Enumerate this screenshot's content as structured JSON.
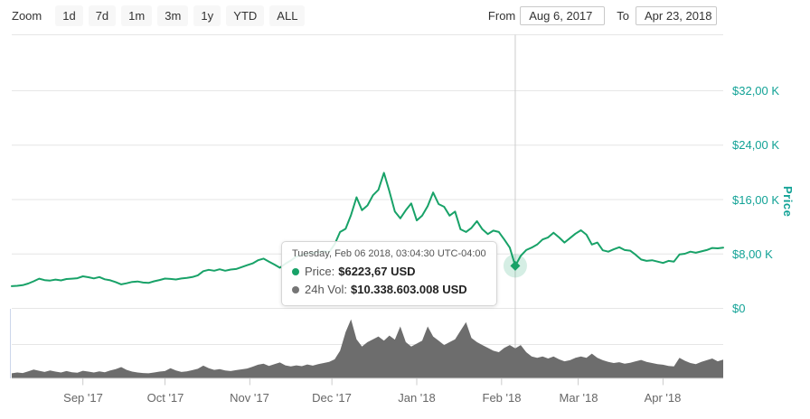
{
  "toolbar": {
    "zoom_label": "Zoom",
    "buttons": [
      "1d",
      "7d",
      "1m",
      "3m",
      "1y",
      "YTD",
      "ALL"
    ],
    "from_label": "From",
    "from_value": "Aug 6, 2017",
    "to_label": "To",
    "to_value": "Apr 23, 2018"
  },
  "tooltip": {
    "date": "Tuesday, Feb 06 2018, 03:04:30 UTC-04:00",
    "price_label": "Price:",
    "price_value": "$6223,67 USD",
    "vol_label": "24h Vol:",
    "vol_value": "$10.338.603.008 USD"
  },
  "chart_data": {
    "type": "line",
    "title": "",
    "grid": true,
    "legend_position": "none",
    "y_axis": {
      "title": "Price",
      "side": "right",
      "labels": [
        "$32,00 K",
        "$24,00 K",
        "$16,00 K",
        "$8,00 K",
        "$0"
      ],
      "tick_values_usd_thousands": [
        32,
        24,
        16,
        8,
        0
      ],
      "ylim_usd_thousands": [
        0,
        40
      ]
    },
    "x_axis": {
      "labels": [
        "Sep '17",
        "Oct '17",
        "Nov '17",
        "Dec '17",
        "Jan '18",
        "Feb '18",
        "Mar '18",
        "Apr '18"
      ],
      "month_day_offsets": [
        26,
        56,
        87,
        117,
        148,
        179,
        207,
        238
      ],
      "range": {
        "from": "Aug 6, 2017",
        "to": "Apr 23, 2018",
        "days": 260
      }
    },
    "selected_point": {
      "day": 184,
      "date": "Tuesday, Feb 06 2018, 03:04:30 UTC-04:00",
      "price_usd_thousands": 6.22367,
      "volume_usd_billions": 10.338603008
    },
    "crosshair_day": 184,
    "colors": {
      "price_line": "#18a268",
      "volume_fill": "#6d6d6d",
      "y_label": "#12a296",
      "x_label": "#666666",
      "gridline": "#e6e6e6",
      "crosshair": "#cccccc",
      "volume_axis_line": "#ccd6eb",
      "bottom_axis_line": "#dedede",
      "tick": "#cccccc",
      "marker_halo": "rgba(24,162,104,0.18)"
    },
    "series": [
      {
        "name": "Price",
        "type": "line",
        "unit": "USD thousands",
        "points": [
          [
            0,
            3.23
          ],
          [
            2,
            3.28
          ],
          [
            4,
            3.38
          ],
          [
            6,
            3.62
          ],
          [
            8,
            3.95
          ],
          [
            10,
            4.33
          ],
          [
            12,
            4.12
          ],
          [
            14,
            4.06
          ],
          [
            16,
            4.2
          ],
          [
            18,
            4.08
          ],
          [
            20,
            4.28
          ],
          [
            22,
            4.33
          ],
          [
            24,
            4.4
          ],
          [
            26,
            4.68
          ],
          [
            28,
            4.55
          ],
          [
            30,
            4.37
          ],
          [
            32,
            4.57
          ],
          [
            34,
            4.24
          ],
          [
            36,
            4.1
          ],
          [
            38,
            3.83
          ],
          [
            40,
            3.5
          ],
          [
            42,
            3.66
          ],
          [
            44,
            3.86
          ],
          [
            46,
            3.92
          ],
          [
            48,
            3.77
          ],
          [
            50,
            3.71
          ],
          [
            52,
            3.95
          ],
          [
            54,
            4.14
          ],
          [
            56,
            4.35
          ],
          [
            58,
            4.29
          ],
          [
            60,
            4.21
          ],
          [
            62,
            4.36
          ],
          [
            64,
            4.45
          ],
          [
            66,
            4.57
          ],
          [
            68,
            4.82
          ],
          [
            70,
            5.44
          ],
          [
            72,
            5.63
          ],
          [
            74,
            5.51
          ],
          [
            76,
            5.72
          ],
          [
            78,
            5.51
          ],
          [
            80,
            5.67
          ],
          [
            82,
            5.75
          ],
          [
            84,
            6.04
          ],
          [
            86,
            6.31
          ],
          [
            88,
            6.58
          ],
          [
            90,
            7.05
          ],
          [
            92,
            7.28
          ],
          [
            94,
            6.84
          ],
          [
            96,
            6.41
          ],
          [
            98,
            5.94
          ],
          [
            100,
            6.54
          ],
          [
            102,
            7.0
          ],
          [
            104,
            7.6
          ],
          [
            106,
            7.81
          ],
          [
            108,
            8.03
          ],
          [
            110,
            8.09
          ],
          [
            112,
            8.21
          ],
          [
            114,
            8.39
          ],
          [
            116,
            8.24
          ],
          [
            118,
            9.4
          ],
          [
            120,
            11.2
          ],
          [
            122,
            11.66
          ],
          [
            124,
            13.7
          ],
          [
            126,
            16.3
          ],
          [
            128,
            14.4
          ],
          [
            130,
            15.1
          ],
          [
            132,
            16.6
          ],
          [
            134,
            17.4
          ],
          [
            136,
            19.9
          ],
          [
            138,
            17.2
          ],
          [
            140,
            14.2
          ],
          [
            142,
            13.2
          ],
          [
            144,
            14.4
          ],
          [
            146,
            15.4
          ],
          [
            148,
            12.9
          ],
          [
            150,
            13.6
          ],
          [
            152,
            15.0
          ],
          [
            154,
            17.0
          ],
          [
            156,
            15.3
          ],
          [
            158,
            14.9
          ],
          [
            160,
            13.6
          ],
          [
            162,
            14.2
          ],
          [
            164,
            11.6
          ],
          [
            166,
            11.2
          ],
          [
            168,
            11.8
          ],
          [
            170,
            12.8
          ],
          [
            172,
            11.6
          ],
          [
            174,
            10.9
          ],
          [
            176,
            11.4
          ],
          [
            178,
            11.2
          ],
          [
            180,
            10.1
          ],
          [
            182,
            8.9
          ],
          [
            184,
            6.22
          ],
          [
            186,
            7.7
          ],
          [
            188,
            8.55
          ],
          [
            190,
            8.9
          ],
          [
            192,
            9.35
          ],
          [
            194,
            10.1
          ],
          [
            196,
            10.4
          ],
          [
            198,
            11.1
          ],
          [
            200,
            10.4
          ],
          [
            202,
            9.65
          ],
          [
            204,
            10.3
          ],
          [
            206,
            10.95
          ],
          [
            208,
            11.45
          ],
          [
            210,
            10.8
          ],
          [
            212,
            9.35
          ],
          [
            214,
            9.65
          ],
          [
            216,
            8.5
          ],
          [
            218,
            8.3
          ],
          [
            220,
            8.65
          ],
          [
            222,
            8.95
          ],
          [
            224,
            8.55
          ],
          [
            226,
            8.45
          ],
          [
            228,
            7.85
          ],
          [
            230,
            7.15
          ],
          [
            232,
            6.95
          ],
          [
            234,
            7.05
          ],
          [
            236,
            6.85
          ],
          [
            238,
            6.65
          ],
          [
            240,
            6.95
          ],
          [
            242,
            6.85
          ],
          [
            244,
            7.9
          ],
          [
            246,
            8.0
          ],
          [
            248,
            8.3
          ],
          [
            250,
            8.15
          ],
          [
            252,
            8.35
          ],
          [
            254,
            8.55
          ],
          [
            256,
            8.85
          ],
          [
            258,
            8.8
          ],
          [
            260,
            8.9
          ]
        ]
      },
      {
        "name": "24h Vol",
        "type": "area",
        "unit": "USD billions",
        "scale_max": 24,
        "points": [
          [
            0,
            1.6
          ],
          [
            2,
            1.9
          ],
          [
            4,
            1.7
          ],
          [
            6,
            2.3
          ],
          [
            8,
            2.9
          ],
          [
            10,
            2.5
          ],
          [
            12,
            2.1
          ],
          [
            14,
            2.6
          ],
          [
            16,
            2.2
          ],
          [
            18,
            1.9
          ],
          [
            20,
            2.4
          ],
          [
            22,
            2.0
          ],
          [
            24,
            1.8
          ],
          [
            26,
            2.5
          ],
          [
            28,
            2.2
          ],
          [
            30,
            1.9
          ],
          [
            32,
            2.3
          ],
          [
            34,
            2.0
          ],
          [
            36,
            2.6
          ],
          [
            38,
            3.1
          ],
          [
            40,
            3.8
          ],
          [
            42,
            2.8
          ],
          [
            44,
            2.2
          ],
          [
            46,
            1.9
          ],
          [
            48,
            1.7
          ],
          [
            50,
            1.6
          ],
          [
            52,
            1.9
          ],
          [
            54,
            2.2
          ],
          [
            56,
            2.4
          ],
          [
            58,
            3.4
          ],
          [
            60,
            2.6
          ],
          [
            62,
            2.1
          ],
          [
            64,
            2.3
          ],
          [
            66,
            2.7
          ],
          [
            68,
            3.2
          ],
          [
            70,
            4.3
          ],
          [
            72,
            3.4
          ],
          [
            74,
            2.8
          ],
          [
            76,
            3.1
          ],
          [
            78,
            2.6
          ],
          [
            80,
            2.4
          ],
          [
            82,
            2.7
          ],
          [
            84,
            3.0
          ],
          [
            86,
            3.3
          ],
          [
            88,
            3.9
          ],
          [
            90,
            4.6
          ],
          [
            92,
            5.0
          ],
          [
            94,
            4.2
          ],
          [
            96,
            4.8
          ],
          [
            98,
            5.4
          ],
          [
            100,
            4.4
          ],
          [
            102,
            4.0
          ],
          [
            104,
            4.4
          ],
          [
            106,
            4.1
          ],
          [
            108,
            4.7
          ],
          [
            110,
            4.3
          ],
          [
            112,
            4.8
          ],
          [
            114,
            5.2
          ],
          [
            116,
            5.6
          ],
          [
            118,
            6.5
          ],
          [
            120,
            9.5
          ],
          [
            122,
            16.0
          ],
          [
            124,
            20.5
          ],
          [
            126,
            13.5
          ],
          [
            128,
            11.0
          ],
          [
            130,
            12.5
          ],
          [
            132,
            13.5
          ],
          [
            134,
            14.5
          ],
          [
            136,
            13.0
          ],
          [
            138,
            14.8
          ],
          [
            140,
            13.4
          ],
          [
            142,
            18.0
          ],
          [
            144,
            12.5
          ],
          [
            146,
            11.0
          ],
          [
            148,
            12.0
          ],
          [
            150,
            13.0
          ],
          [
            152,
            18.0
          ],
          [
            154,
            14.5
          ],
          [
            156,
            13.0
          ],
          [
            158,
            11.5
          ],
          [
            160,
            12.5
          ],
          [
            162,
            13.5
          ],
          [
            164,
            16.5
          ],
          [
            166,
            19.5
          ],
          [
            168,
            14.0
          ],
          [
            170,
            12.5
          ],
          [
            172,
            11.5
          ],
          [
            174,
            10.5
          ],
          [
            176,
            9.5
          ],
          [
            178,
            9.0
          ],
          [
            180,
            10.5
          ],
          [
            182,
            11.5
          ],
          [
            184,
            10.34
          ],
          [
            186,
            11.5
          ],
          [
            188,
            9.0
          ],
          [
            190,
            7.5
          ],
          [
            192,
            7.0
          ],
          [
            194,
            7.5
          ],
          [
            196,
            6.8
          ],
          [
            198,
            7.5
          ],
          [
            200,
            6.5
          ],
          [
            202,
            5.8
          ],
          [
            204,
            6.2
          ],
          [
            206,
            7.0
          ],
          [
            208,
            7.5
          ],
          [
            210,
            7.0
          ],
          [
            212,
            8.5
          ],
          [
            214,
            7.0
          ],
          [
            216,
            6.2
          ],
          [
            218,
            5.6
          ],
          [
            220,
            5.2
          ],
          [
            222,
            5.5
          ],
          [
            224,
            5.0
          ],
          [
            226,
            5.3
          ],
          [
            228,
            5.8
          ],
          [
            230,
            6.3
          ],
          [
            232,
            5.6
          ],
          [
            234,
            5.2
          ],
          [
            236,
            4.8
          ],
          [
            238,
            4.6
          ],
          [
            240,
            4.2
          ],
          [
            242,
            4.0
          ],
          [
            244,
            7.0
          ],
          [
            246,
            6.0
          ],
          [
            248,
            5.2
          ],
          [
            250,
            4.8
          ],
          [
            252,
            5.6
          ],
          [
            254,
            6.2
          ],
          [
            256,
            6.8
          ],
          [
            258,
            5.8
          ],
          [
            260,
            6.4
          ]
        ]
      }
    ]
  }
}
